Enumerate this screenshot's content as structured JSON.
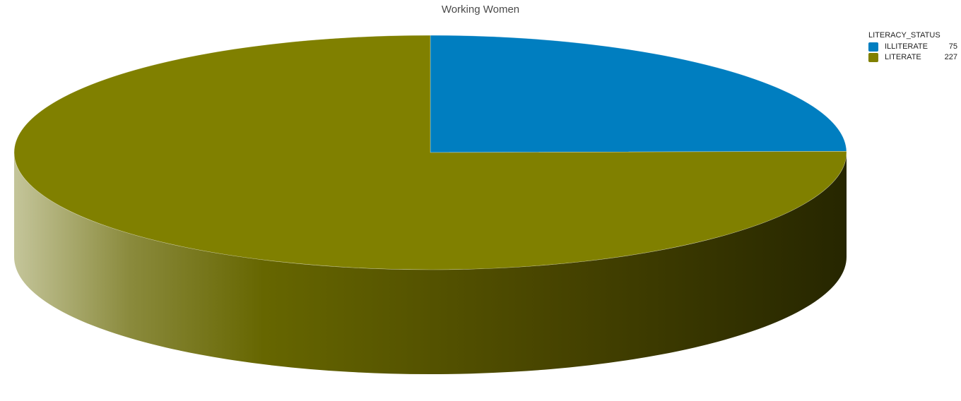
{
  "chart_data": {
    "type": "pie",
    "title": "Working Women",
    "legend_title": "LITERACY_STATUS",
    "legend_position": "top-right",
    "categories": [
      "ILLITERATE",
      "LITERATE"
    ],
    "values": [
      75,
      227
    ],
    "colors": [
      "#007ec0",
      "#808000"
    ]
  }
}
